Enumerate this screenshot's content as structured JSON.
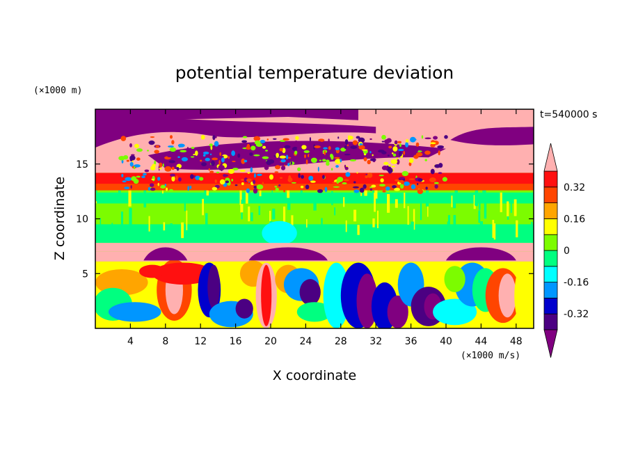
{
  "chart_data": {
    "type": "heatmap",
    "title": "potential temperature deviation",
    "xlabel": "X coordinate",
    "ylabel": "Z coordinate",
    "x_unit": "(×1000 m/s)",
    "y_unit": "(×1000 m)",
    "time_label": "t=540000 s",
    "xlim": [
      0,
      50
    ],
    "ylim": [
      0,
      20
    ],
    "x_ticks": [
      4,
      8,
      12,
      16,
      20,
      24,
      28,
      32,
      36,
      40,
      44,
      48
    ],
    "y_ticks": [
      5,
      10,
      15
    ],
    "colorbar": {
      "levels": [
        -0.4,
        -0.32,
        -0.24,
        -0.16,
        -0.08,
        0,
        0.08,
        0.16,
        0.24,
        0.32,
        0.4
      ],
      "labels": [
        "-0.32",
        "-0.16",
        "0",
        "0.16",
        "0.32"
      ],
      "label_values": [
        -0.32,
        -0.16,
        0,
        0.16,
        0.32
      ],
      "colors": [
        "#800080",
        "#4b0082",
        "#0000cd",
        "#0096ff",
        "#00ffff",
        "#00ff80",
        "#7cfc00",
        "#ffff00",
        "#ffa500",
        "#ff4500",
        "#ff1010",
        "#ffb0b0"
      ],
      "extend": "both"
    }
  }
}
